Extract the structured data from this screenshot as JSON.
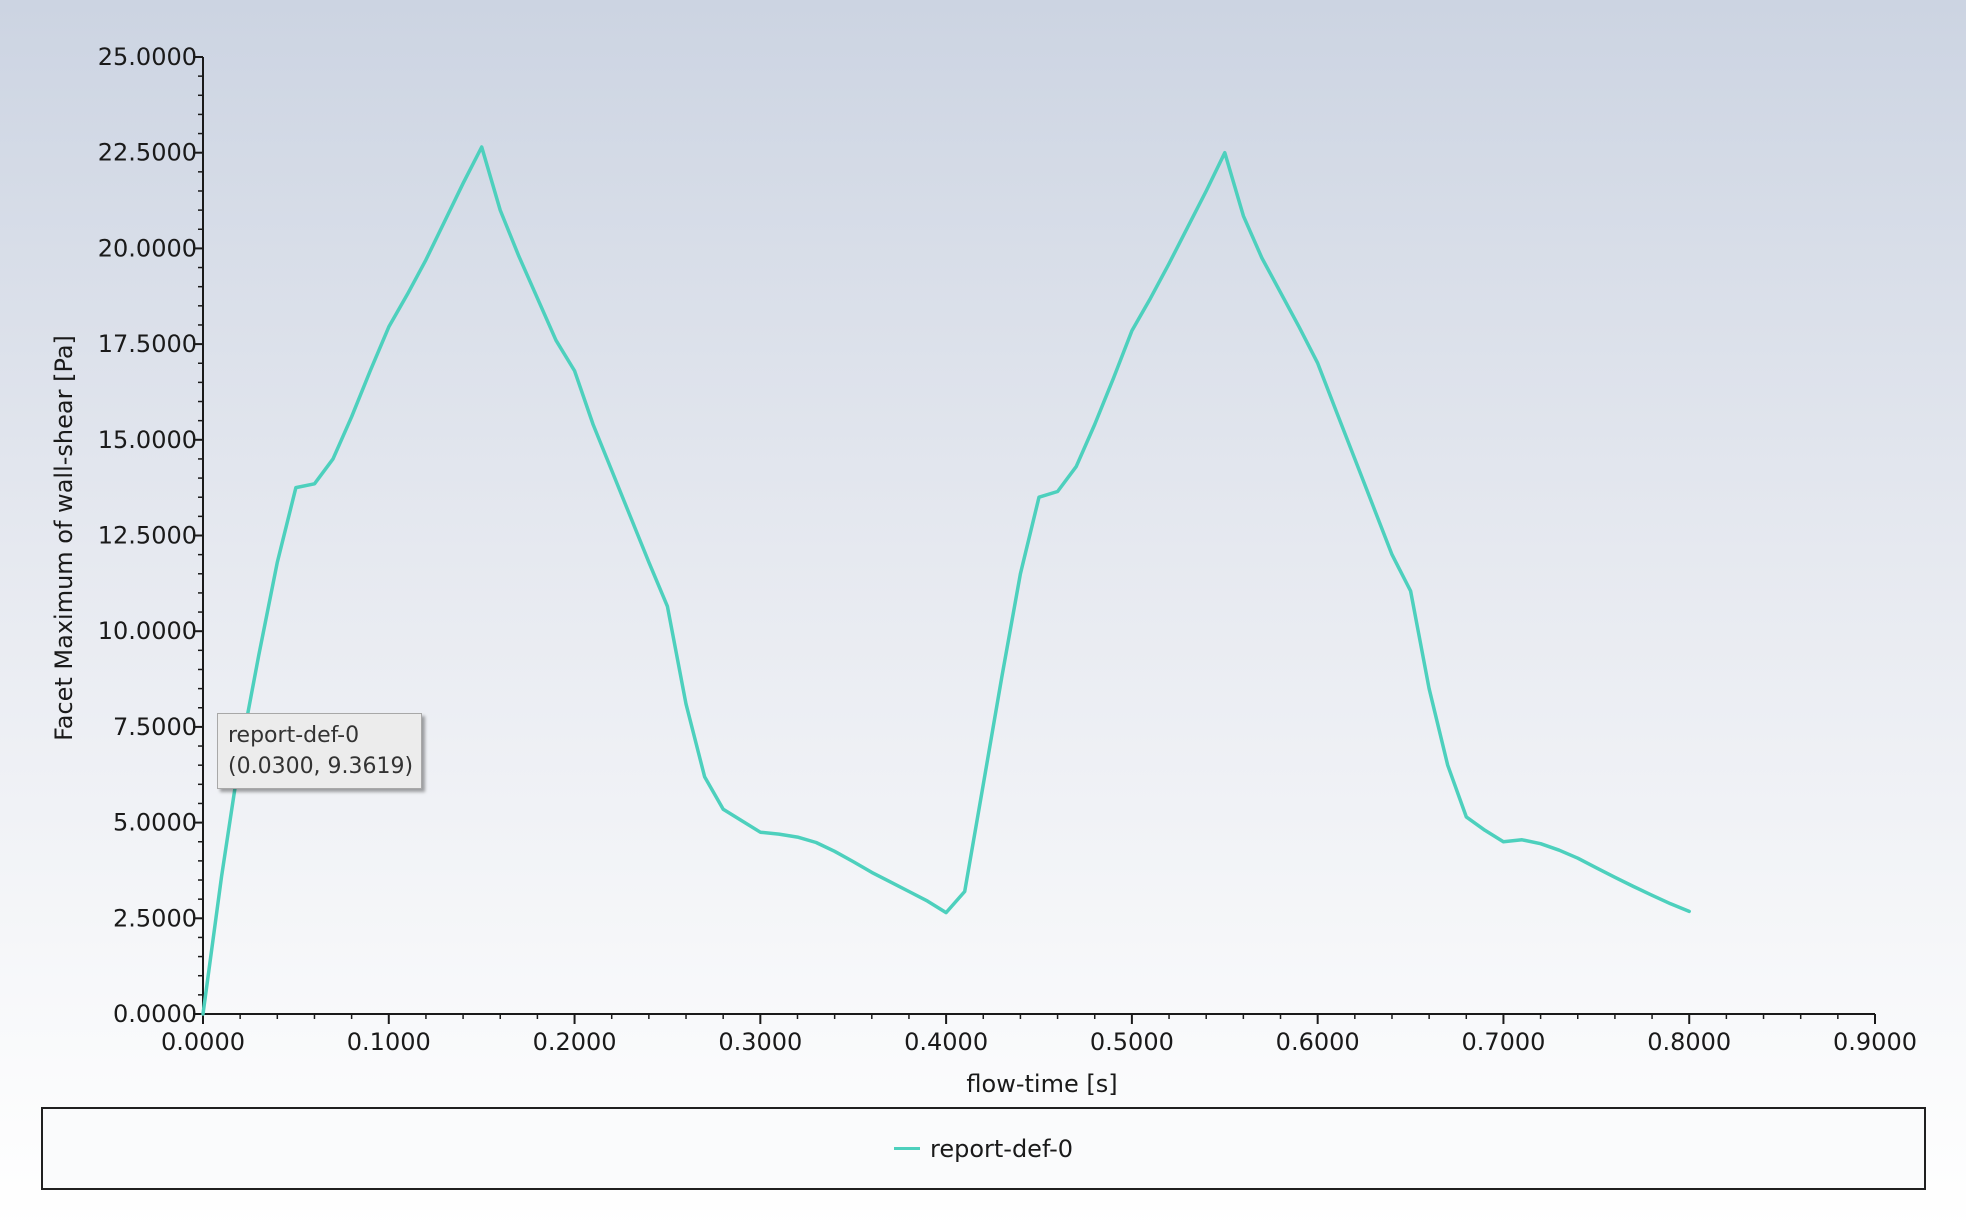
{
  "colors": {
    "series": "#4dd0bd",
    "axis": "#1a1a1a",
    "text": "#1a1a1a"
  },
  "chart_data": {
    "type": "line",
    "title": "",
    "xlabel": "flow-time [s]",
    "ylabel": "Facet Maximum of wall-shear [Pa]",
    "xlim": [
      0,
      0.9
    ],
    "ylim": [
      0,
      25
    ],
    "x_ticks": [
      "0.0000",
      "0.1000",
      "0.2000",
      "0.3000",
      "0.4000",
      "0.5000",
      "0.6000",
      "0.7000",
      "0.8000",
      "0.9000"
    ],
    "y_ticks": [
      "0.0000",
      "2.5000",
      "5.0000",
      "7.5000",
      "10.0000",
      "12.5000",
      "15.0000",
      "17.5000",
      "20.0000",
      "22.5000",
      "25.0000"
    ],
    "grid": false,
    "legend_position": "bottom",
    "series": [
      {
        "name": "report-def-0",
        "x": [
          0.0,
          0.01,
          0.02,
          0.03,
          0.04,
          0.05,
          0.06,
          0.07,
          0.08,
          0.09,
          0.1,
          0.11,
          0.12,
          0.13,
          0.14,
          0.15,
          0.16,
          0.17,
          0.18,
          0.19,
          0.2,
          0.21,
          0.22,
          0.23,
          0.24,
          0.25,
          0.26,
          0.27,
          0.28,
          0.29,
          0.3,
          0.31,
          0.32,
          0.33,
          0.34,
          0.35,
          0.36,
          0.37,
          0.38,
          0.39,
          0.4,
          0.41,
          0.42,
          0.43,
          0.44,
          0.45,
          0.46,
          0.47,
          0.48,
          0.49,
          0.5,
          0.51,
          0.52,
          0.53,
          0.54,
          0.55,
          0.56,
          0.57,
          0.58,
          0.59,
          0.6,
          0.61,
          0.62,
          0.63,
          0.64,
          0.65,
          0.66,
          0.67,
          0.68,
          0.69,
          0.7,
          0.71,
          0.72,
          0.73,
          0.74,
          0.75,
          0.76,
          0.77,
          0.78,
          0.79,
          0.8
        ],
        "y": [
          0.0,
          3.6,
          6.8,
          9.3619,
          11.8,
          13.75,
          13.85,
          14.5,
          15.6,
          16.8,
          17.95,
          18.8,
          19.7,
          20.7,
          21.7,
          22.65,
          21.0,
          19.8,
          18.7,
          17.6,
          16.8,
          15.4,
          14.2,
          13.0,
          11.8,
          10.65,
          8.1,
          6.2,
          5.35,
          5.05,
          4.75,
          4.7,
          4.62,
          4.48,
          4.25,
          3.98,
          3.7,
          3.45,
          3.2,
          2.95,
          2.65,
          3.2,
          6.0,
          8.8,
          11.5,
          13.5,
          13.65,
          14.3,
          15.4,
          16.6,
          17.85,
          18.7,
          19.6,
          20.55,
          21.5,
          22.5,
          20.85,
          19.75,
          18.85,
          17.95,
          17.0,
          15.75,
          14.5,
          13.25,
          12.0,
          11.05,
          8.5,
          6.5,
          5.15,
          4.8,
          4.5,
          4.55,
          4.45,
          4.28,
          4.07,
          3.82,
          3.57,
          3.33,
          3.1,
          2.88,
          2.68
        ]
      }
    ]
  },
  "legend": {
    "entries": [
      {
        "label": "report-def-0"
      }
    ]
  },
  "tooltip": {
    "series": "report-def-0",
    "point": "(0.0300, 9.3619)"
  }
}
